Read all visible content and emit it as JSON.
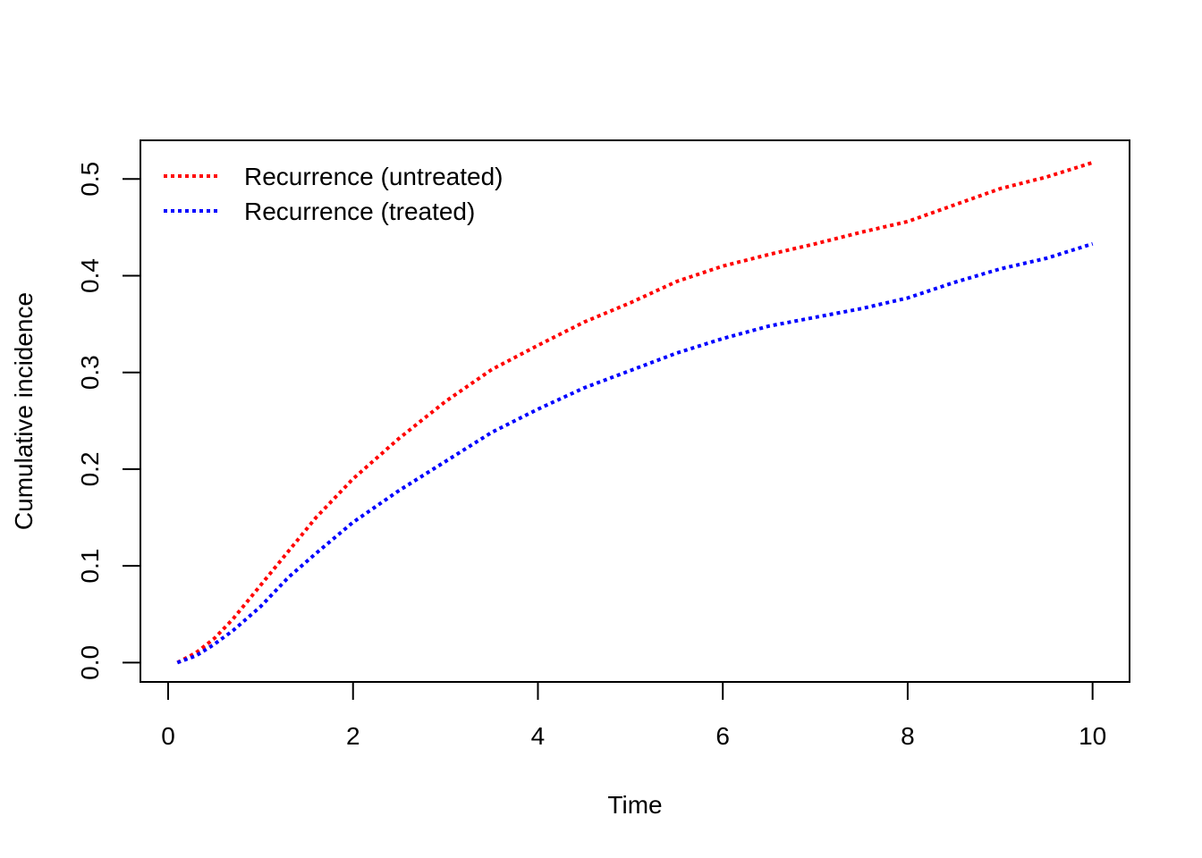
{
  "chart_data": {
    "type": "line",
    "xlabel": "Time",
    "ylabel": "Cumulative incidence",
    "xlim": [
      -0.3,
      10.4
    ],
    "ylim": [
      -0.02,
      0.54
    ],
    "x_ticks": [
      0,
      2,
      4,
      6,
      8,
      10
    ],
    "x_tick_labels": [
      "0",
      "2",
      "4",
      "6",
      "8",
      "10"
    ],
    "y_ticks": [
      0.0,
      0.1,
      0.2,
      0.3,
      0.4,
      0.5
    ],
    "y_tick_labels": [
      "0.0",
      "0.1",
      "0.2",
      "0.3",
      "0.4",
      "0.5"
    ],
    "grid": false,
    "legend_position": "top-left",
    "series": [
      {
        "name": "Recurrence (untreated)",
        "color": "#ff0000",
        "line_style": "dotted",
        "x": [
          0.1,
          0.3,
          0.5,
          0.7,
          1.0,
          1.3,
          1.6,
          2.0,
          2.5,
          3.0,
          3.5,
          4.0,
          4.5,
          5.0,
          5.5,
          6.0,
          6.5,
          7.0,
          7.5,
          8.0,
          8.5,
          9.0,
          9.5,
          10.0
        ],
        "y": [
          0.0,
          0.01,
          0.025,
          0.045,
          0.08,
          0.115,
          0.15,
          0.19,
          0.232,
          0.27,
          0.303,
          0.328,
          0.352,
          0.372,
          0.394,
          0.41,
          0.422,
          0.433,
          0.445,
          0.456,
          0.473,
          0.49,
          0.502,
          0.517
        ]
      },
      {
        "name": "Recurrence (treated)",
        "color": "#0000ff",
        "line_style": "dotted",
        "x": [
          0.1,
          0.3,
          0.5,
          0.7,
          1.0,
          1.3,
          1.6,
          2.0,
          2.5,
          3.0,
          3.5,
          4.0,
          4.5,
          5.0,
          5.5,
          6.0,
          6.5,
          7.0,
          7.5,
          8.0,
          8.5,
          9.0,
          9.5,
          10.0
        ],
        "y": [
          0.0,
          0.007,
          0.019,
          0.033,
          0.058,
          0.088,
          0.113,
          0.145,
          0.178,
          0.208,
          0.238,
          0.262,
          0.284,
          0.302,
          0.32,
          0.335,
          0.348,
          0.357,
          0.366,
          0.377,
          0.393,
          0.407,
          0.418,
          0.433
        ]
      }
    ]
  }
}
